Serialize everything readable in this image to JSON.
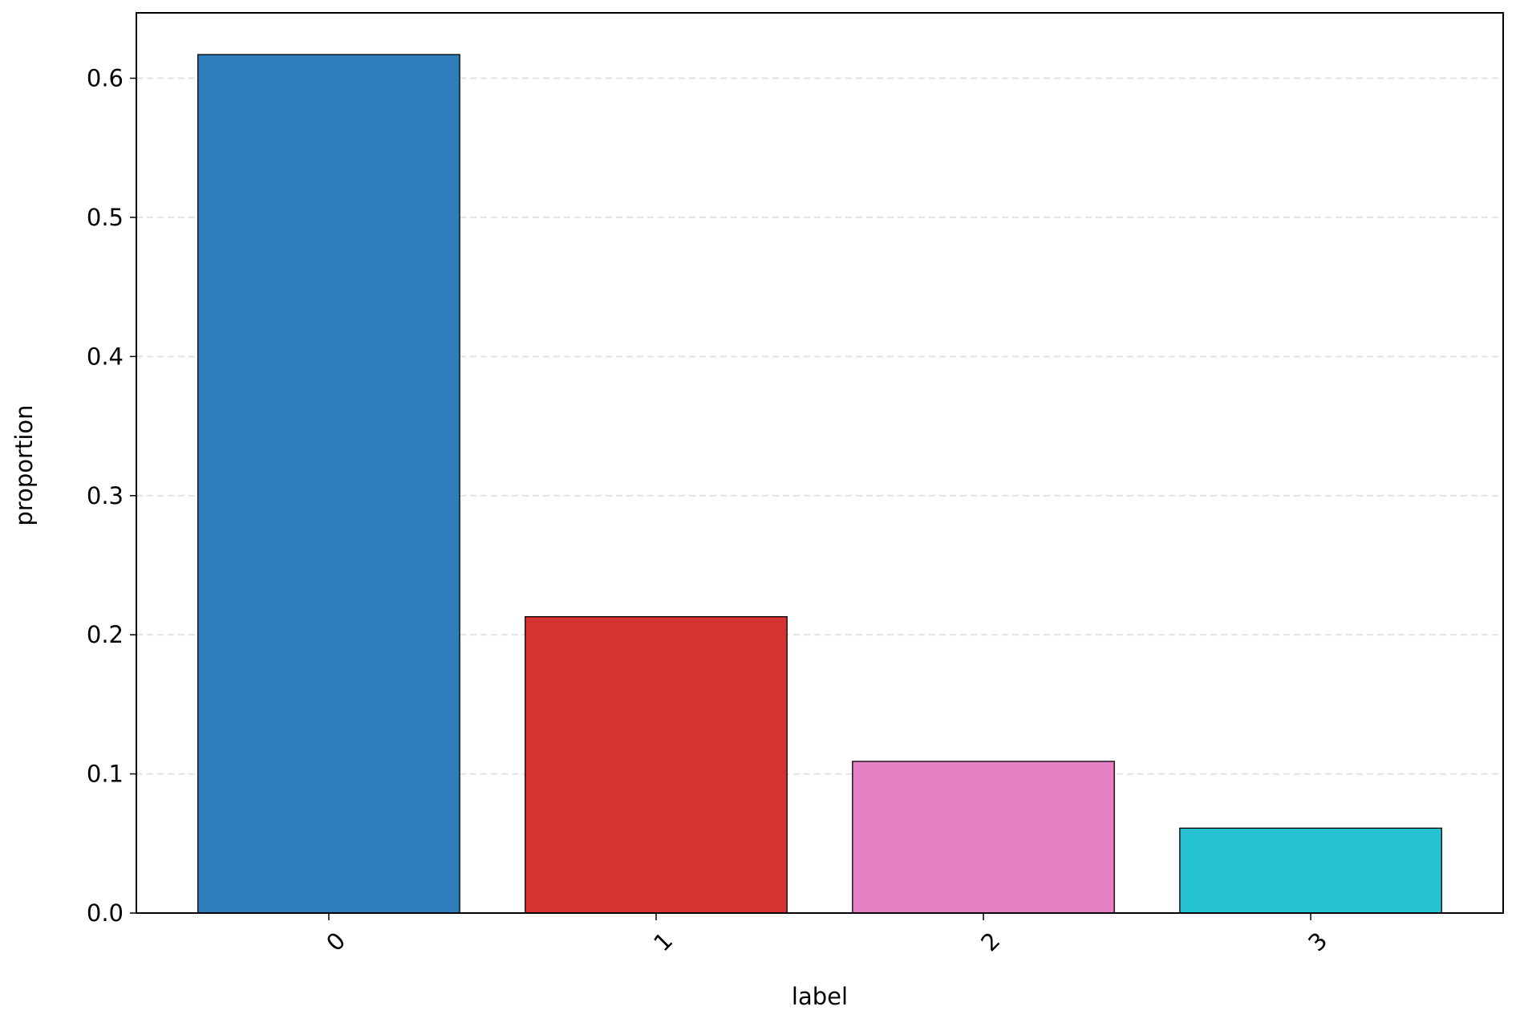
{
  "chart_data": {
    "type": "bar",
    "categories": [
      "0",
      "1",
      "2",
      "3"
    ],
    "values": [
      0.617,
      0.213,
      0.109,
      0.061
    ],
    "colors": [
      "#2e7ebb",
      "#d73232",
      "#e480c3",
      "#27c2d3"
    ],
    "xlabel": "label",
    "ylabel": "proportion",
    "ylim": [
      0,
      0.647
    ],
    "yticks": [
      {
        "value": 0,
        "label": "0.0"
      },
      0.1,
      0.2,
      0.3,
      0.4,
      0.5,
      0.6
    ],
    "grid": true
  }
}
